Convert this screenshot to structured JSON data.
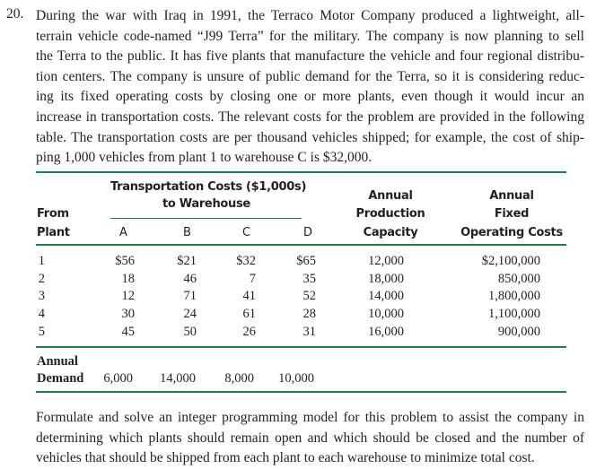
{
  "problem_number": "20.",
  "intro_lines": [
    "During the war with Iraq in 1991, the Terraco Motor Company produced a lightweight, all-",
    "terrain vehicle code-named “J99 Terra” for the military. The company is now planning to sell",
    "the Terra to the public. It has five plants that manufacture the vehicle and four regional distribu-",
    "tion centers. The company is unsure of public demand for the Terra, so it is considering reduc-",
    "ing its fixed operating costs by closing one or more plants, even though it would incur an",
    "increase in transportation costs. The relevant costs for the problem are provided in the following",
    "table. The transportation costs are per thousand vehicles shipped; for example, the cost of ship-",
    "ping 1,000 vehicles from plant 1 to warehouse C is $32,000."
  ],
  "table": {
    "transport_header_1": "Transportation Costs ($1,000s)",
    "transport_header_2": "to Warehouse",
    "from_label": "From",
    "plant_label": "Plant",
    "warehouses": [
      "A",
      "B",
      "C",
      "D"
    ],
    "capacity_header": [
      "Annual",
      "Production",
      "Capacity"
    ],
    "fixed_header": [
      "Annual",
      "Fixed",
      "Operating Costs"
    ],
    "rows": [
      {
        "plant": "1",
        "costs": [
          "$56",
          "$21",
          "$32",
          "$65"
        ],
        "capacity": "12,000",
        "fixed": "$2,100,000"
      },
      {
        "plant": "2",
        "costs": [
          "18",
          "46",
          "7",
          "35"
        ],
        "capacity": "18,000",
        "fixed": "850,000"
      },
      {
        "plant": "3",
        "costs": [
          "12",
          "71",
          "41",
          "52"
        ],
        "capacity": "14,000",
        "fixed": "1,800,000"
      },
      {
        "plant": "4",
        "costs": [
          "30",
          "24",
          "61",
          "28"
        ],
        "capacity": "10,000",
        "fixed": "1,100,000"
      },
      {
        "plant": "5",
        "costs": [
          "45",
          "50",
          "26",
          "31"
        ],
        "capacity": "16,000",
        "fixed": "900,000"
      }
    ],
    "demand_label_1": "Annual",
    "demand_label_2": "Demand",
    "demand": [
      "6,000",
      "14,000",
      "8,000",
      "10,000"
    ]
  },
  "closing_lines": [
    "Formulate and solve an integer programming model for this problem to assist the company in",
    "determining which plants should remain open and which should be closed and the number of",
    "vehicles that should be shipped from each plant to each warehouse to minimize total cost."
  ],
  "rule_color": "#1a7f4b"
}
